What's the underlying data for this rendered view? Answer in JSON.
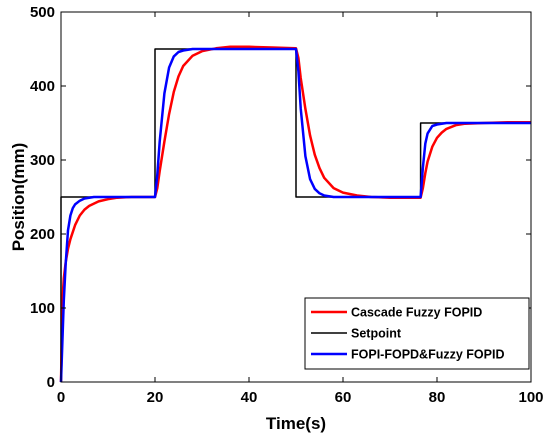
{
  "chart_data": {
    "type": "line",
    "title": "",
    "xlabel": "Time(s)",
    "ylabel": "Position(mm)",
    "xlim": [
      0,
      100
    ],
    "ylim": [
      0,
      500
    ],
    "xticks": [
      0,
      20,
      40,
      60,
      80,
      100
    ],
    "yticks": [
      0,
      100,
      200,
      300,
      400,
      500
    ],
    "grid": false,
    "legend_position": "bottom-right",
    "series": [
      {
        "name": "Cascade Fuzzy FOPID",
        "color": "#ff0000",
        "x": [
          0,
          0.3,
          0.6,
          1,
          1.5,
          2,
          3,
          4,
          5,
          6,
          8,
          10,
          12,
          15,
          19.9,
          20,
          20.5,
          21,
          22,
          23,
          24,
          25,
          26,
          28,
          30,
          33,
          36,
          40,
          45,
          49.9,
          50,
          50.5,
          51,
          52,
          53,
          54,
          55,
          56,
          58,
          60,
          63,
          66,
          70,
          76.4,
          76.5,
          77,
          77.5,
          78,
          79,
          80,
          81,
          82,
          84,
          86,
          90,
          95,
          100
        ],
        "y": [
          0,
          110,
          140,
          162,
          180,
          193,
          212,
          225,
          233,
          238,
          244,
          247,
          249,
          250,
          250,
          250,
          262,
          285,
          325,
          362,
          392,
          413,
          427,
          441,
          447,
          451,
          453,
          453,
          452,
          451,
          451,
          438,
          411,
          369,
          333,
          307,
          289,
          276,
          262,
          256,
          252,
          250,
          249,
          249,
          249,
          262,
          282,
          298,
          318,
          330,
          337,
          342,
          347,
          349,
          350,
          351,
          351
        ]
      },
      {
        "name": "Setpoint",
        "color": "#000000",
        "x": [
          0,
          0,
          20,
          20,
          50,
          50,
          76.5,
          76.5,
          100
        ],
        "y": [
          0,
          250,
          250,
          450,
          450,
          250,
          250,
          350,
          350
        ]
      },
      {
        "name": "FOPI-FOPD&Fuzzy FOPID",
        "color": "#0000ff",
        "x": [
          0,
          0.3,
          0.6,
          1,
          1.5,
          2,
          2.5,
          3,
          4,
          5,
          7,
          10,
          15,
          19.9,
          20,
          20.5,
          21,
          22,
          23,
          24,
          25,
          26,
          28,
          30,
          35,
          40,
          49.9,
          50,
          50.5,
          51,
          52,
          53,
          54,
          55,
          56,
          58,
          60,
          70,
          76.4,
          76.5,
          77,
          77.5,
          78,
          79,
          80,
          82,
          85,
          90,
          100
        ],
        "y": [
          0,
          55,
          110,
          160,
          205,
          225,
          235,
          240,
          245,
          248,
          250,
          250,
          250,
          250,
          250,
          280,
          325,
          390,
          425,
          440,
          446,
          448,
          450,
          450,
          450,
          450,
          450,
          450,
          420,
          370,
          305,
          274,
          261,
          255,
          252,
          250,
          250,
          250,
          250,
          250,
          290,
          322,
          336,
          346,
          348,
          350,
          350,
          350,
          350
        ]
      }
    ]
  }
}
